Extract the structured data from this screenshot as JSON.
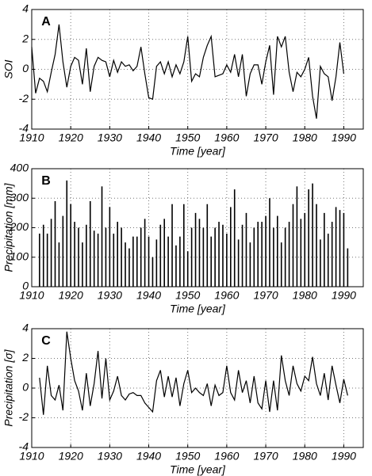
{
  "chart_data": [
    {
      "type": "line",
      "title": "A",
      "ylabel": "SOI",
      "xlabel": "Time [year]",
      "color": "#000000",
      "grid": true,
      "xlim": [
        1910,
        1995
      ],
      "xticks": [
        1910,
        1920,
        1930,
        1940,
        1950,
        1960,
        1970,
        1980,
        1990
      ],
      "ylim": [
        -4,
        4
      ],
      "yticks": [
        -4,
        -2,
        0,
        2,
        4
      ],
      "x": [
        1910,
        1911,
        1912,
        1913,
        1914,
        1915,
        1916,
        1917,
        1918,
        1919,
        1920,
        1921,
        1922,
        1923,
        1924,
        1925,
        1926,
        1927,
        1928,
        1929,
        1930,
        1931,
        1932,
        1933,
        1934,
        1935,
        1936,
        1937,
        1938,
        1939,
        1940,
        1941,
        1942,
        1943,
        1944,
        1945,
        1946,
        1947,
        1948,
        1949,
        1950,
        1951,
        1952,
        1953,
        1954,
        1955,
        1956,
        1957,
        1958,
        1959,
        1960,
        1961,
        1962,
        1963,
        1964,
        1965,
        1966,
        1967,
        1968,
        1969,
        1970,
        1971,
        1972,
        1973,
        1974,
        1975,
        1976,
        1977,
        1978,
        1979,
        1980,
        1981,
        1982,
        1983,
        1984,
        1985,
        1986,
        1987,
        1988,
        1989,
        1990
      ],
      "values": [
        1.5,
        -1.6,
        -0.6,
        -0.8,
        -1.5,
        -0.2,
        1.0,
        3.0,
        0.5,
        -1.2,
        0.2,
        0.8,
        0.6,
        -1.0,
        1.4,
        -1.5,
        0.2,
        0.8,
        0.6,
        0.5,
        -0.5,
        0.6,
        -0.2,
        0.5,
        0.2,
        0.3,
        -0.1,
        0.2,
        1.5,
        -0.3,
        -1.9,
        -2.0,
        0.2,
        0.5,
        -0.3,
        0.5,
        -0.5,
        0.3,
        -0.3,
        0.5,
        2.2,
        -0.8,
        -0.3,
        -0.5,
        0.8,
        1.6,
        2.2,
        -0.5,
        -0.4,
        -0.3,
        0.3,
        -0.2,
        1.0,
        -0.5,
        1.0,
        -1.8,
        -0.3,
        0.3,
        0.3,
        -1.0,
        0.5,
        1.6,
        -1.7,
        2.2,
        1.5,
        2.2,
        -0.2,
        -1.5,
        -0.2,
        -0.5,
        0.0,
        0.8,
        -1.8,
        -3.3,
        0.2,
        -0.3,
        -0.5,
        -2.1,
        -0.5,
        1.8,
        -0.3
      ]
    },
    {
      "type": "spike",
      "title": "B",
      "ylabel": "Precipitation [mm]",
      "xlabel": "Time [year]",
      "color": "#000000",
      "grid": true,
      "xlim": [
        1910,
        1995
      ],
      "xticks": [
        1910,
        1920,
        1930,
        1940,
        1950,
        1960,
        1970,
        1980,
        1990
      ],
      "ylim": [
        0,
        400
      ],
      "yticks": [
        0,
        100,
        200,
        300,
        400
      ],
      "x": [
        1912,
        1913,
        1914,
        1915,
        1916,
        1917,
        1918,
        1919,
        1920,
        1921,
        1922,
        1923,
        1924,
        1925,
        1926,
        1927,
        1928,
        1929,
        1930,
        1931,
        1932,
        1933,
        1934,
        1935,
        1936,
        1937,
        1938,
        1939,
        1940,
        1941,
        1942,
        1943,
        1944,
        1945,
        1946,
        1947,
        1948,
        1949,
        1950,
        1951,
        1952,
        1953,
        1954,
        1955,
        1956,
        1957,
        1958,
        1959,
        1960,
        1961,
        1962,
        1963,
        1964,
        1965,
        1966,
        1967,
        1968,
        1969,
        1970,
        1971,
        1972,
        1973,
        1974,
        1975,
        1976,
        1977,
        1978,
        1979,
        1980,
        1981,
        1982,
        1983,
        1984,
        1985,
        1986,
        1987,
        1988,
        1989,
        1990,
        1991
      ],
      "values": [
        180,
        210,
        180,
        230,
        290,
        150,
        240,
        360,
        280,
        220,
        200,
        150,
        210,
        290,
        190,
        180,
        340,
        200,
        270,
        180,
        220,
        200,
        150,
        130,
        170,
        170,
        200,
        230,
        170,
        100,
        160,
        210,
        230,
        170,
        280,
        140,
        170,
        280,
        120,
        200,
        250,
        230,
        200,
        280,
        170,
        200,
        220,
        210,
        180,
        270,
        330,
        160,
        210,
        250,
        150,
        200,
        220,
        220,
        240,
        300,
        200,
        240,
        150,
        200,
        220,
        280,
        340,
        230,
        250,
        330,
        350,
        280,
        160,
        250,
        180,
        220,
        270,
        260,
        250,
        130
      ]
    },
    {
      "type": "line",
      "title": "C",
      "ylabel": "Precipitation [σ]",
      "xlabel": "Time [year]",
      "color": "#000000",
      "grid": true,
      "xlim": [
        1910,
        1995
      ],
      "xticks": [
        1910,
        1920,
        1930,
        1940,
        1950,
        1960,
        1970,
        1980,
        1990
      ],
      "ylim": [
        -4,
        4
      ],
      "yticks": [
        -4,
        -2,
        0,
        2,
        4
      ],
      "x": [
        1912,
        1913,
        1914,
        1915,
        1916,
        1917,
        1918,
        1919,
        1920,
        1921,
        1922,
        1923,
        1924,
        1925,
        1926,
        1927,
        1928,
        1929,
        1930,
        1931,
        1932,
        1933,
        1934,
        1935,
        1936,
        1937,
        1938,
        1939,
        1940,
        1941,
        1942,
        1943,
        1944,
        1945,
        1946,
        1947,
        1948,
        1949,
        1950,
        1951,
        1952,
        1953,
        1954,
        1955,
        1956,
        1957,
        1958,
        1959,
        1960,
        1961,
        1962,
        1963,
        1964,
        1965,
        1966,
        1967,
        1968,
        1969,
        1970,
        1971,
        1972,
        1973,
        1974,
        1975,
        1976,
        1977,
        1978,
        1979,
        1980,
        1981,
        1982,
        1983,
        1984,
        1985,
        1986,
        1987,
        1988,
        1989,
        1990,
        1991
      ],
      "values": [
        0.7,
        -1.8,
        1.5,
        -0.5,
        -0.8,
        0.2,
        -1.5,
        3.8,
        2.0,
        0.5,
        -0.2,
        -1.5,
        1.0,
        -1.2,
        0.3,
        2.5,
        -0.7,
        2.0,
        -0.8,
        -0.2,
        0.8,
        -0.5,
        -0.8,
        -0.4,
        -0.3,
        -0.5,
        -0.5,
        -1.0,
        -1.3,
        -1.6,
        0.5,
        1.2,
        -0.6,
        0.8,
        -0.6,
        0.7,
        -1.2,
        0.3,
        1.2,
        -0.3,
        0,
        -0.3,
        -0.5,
        0.3,
        -1.2,
        0.2,
        -0.5,
        -0.3,
        1.5,
        -0.3,
        -0.8,
        1.2,
        -0.3,
        0.5,
        -1.0,
        0.8,
        -1.0,
        -1.4,
        0.5,
        -1.6,
        0.5,
        -1.5,
        2.2,
        0.5,
        -0.5,
        1.5,
        0.3,
        -0.2,
        0.8,
        0.5,
        2.1,
        0.3,
        -0.5,
        1.0,
        -0.8,
        1.5,
        0.2,
        -1.0,
        0.6,
        -0.5
      ]
    }
  ]
}
